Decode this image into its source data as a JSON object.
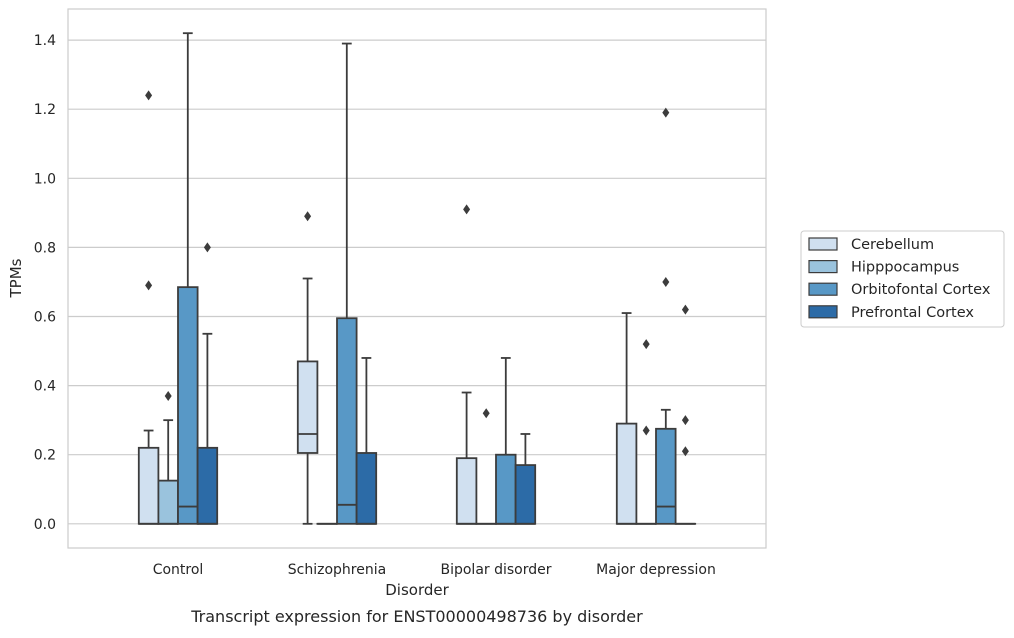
{
  "chart_data": {
    "type": "box",
    "title": "",
    "caption": "Transcript expression for ENST00000498736 by disorder",
    "xlabel": "Disorder",
    "ylabel": "TPMs",
    "ylim": [
      -0.07,
      1.49
    ],
    "yticks": [
      "0.0",
      "0.2",
      "0.4",
      "0.6",
      "0.8",
      "1.0",
      "1.2",
      "1.4"
    ],
    "categories": [
      "Control",
      "Schizophrenia",
      "Bipolar disorder",
      "Major depression"
    ],
    "grid": "horizontal",
    "legend_position": "right",
    "series": [
      {
        "name": "Cerebellum",
        "color": "#d0e0f0",
        "boxes": [
          {
            "q1": 0.0,
            "median": 0.0,
            "q3": 0.22,
            "whisker_low": 0.0,
            "whisker_high": 0.27,
            "outliers": [
              0.69,
              1.24
            ]
          },
          {
            "q1": 0.205,
            "median": 0.26,
            "q3": 0.47,
            "whisker_low": 0.0,
            "whisker_high": 0.71,
            "outliers": [
              0.89
            ]
          },
          {
            "q1": 0.0,
            "median": 0.0,
            "q3": 0.19,
            "whisker_low": 0.0,
            "whisker_high": 0.38,
            "outliers": [
              0.91
            ]
          },
          {
            "q1": 0.0,
            "median": 0.0,
            "q3": 0.29,
            "whisker_low": 0.0,
            "whisker_high": 0.61,
            "outliers": []
          }
        ]
      },
      {
        "name": "Hipppocampus",
        "color": "#9ac3dd",
        "boxes": [
          {
            "q1": 0.0,
            "median": 0.0,
            "q3": 0.125,
            "whisker_low": 0.0,
            "whisker_high": 0.3,
            "outliers": [
              0.37
            ]
          },
          {
            "q1": 0.0,
            "median": 0.0,
            "q3": 0.0,
            "whisker_low": 0.0,
            "whisker_high": 0.0,
            "outliers": []
          },
          {
            "q1": 0.0,
            "median": 0.0,
            "q3": 0.0,
            "whisker_low": 0.0,
            "whisker_high": 0.0,
            "outliers": [
              0.32
            ]
          },
          {
            "q1": 0.0,
            "median": 0.0,
            "q3": 0.0,
            "whisker_low": 0.0,
            "whisker_high": 0.0,
            "outliers": [
              0.27,
              0.52
            ]
          }
        ]
      },
      {
        "name": "Orbitofontal Cortex",
        "color": "#5898c6",
        "boxes": [
          {
            "q1": 0.0,
            "median": 0.05,
            "q3": 0.685,
            "whisker_low": 0.0,
            "whisker_high": 1.42,
            "outliers": []
          },
          {
            "q1": 0.0,
            "median": 0.055,
            "q3": 0.595,
            "whisker_low": 0.0,
            "whisker_high": 1.39,
            "outliers": []
          },
          {
            "q1": 0.0,
            "median": 0.0,
            "q3": 0.2,
            "whisker_low": 0.0,
            "whisker_high": 0.48,
            "outliers": []
          },
          {
            "q1": 0.0,
            "median": 0.05,
            "q3": 0.275,
            "whisker_low": 0.0,
            "whisker_high": 0.33,
            "outliers": [
              0.7,
              1.19
            ]
          }
        ]
      },
      {
        "name": "Prefrontal Cortex",
        "color": "#2c6ba7",
        "boxes": [
          {
            "q1": 0.0,
            "median": 0.0,
            "q3": 0.22,
            "whisker_low": 0.0,
            "whisker_high": 0.55,
            "outliers": [
              0.8
            ]
          },
          {
            "q1": 0.0,
            "median": 0.0,
            "q3": 0.205,
            "whisker_low": 0.0,
            "whisker_high": 0.48,
            "outliers": []
          },
          {
            "q1": 0.0,
            "median": 0.0,
            "q3": 0.17,
            "whisker_low": 0.0,
            "whisker_high": 0.26,
            "outliers": []
          },
          {
            "q1": 0.0,
            "median": 0.0,
            "q3": 0.0,
            "whisker_low": 0.0,
            "whisker_high": 0.0,
            "outliers": [
              0.21,
              0.3,
              0.62
            ]
          }
        ]
      }
    ]
  }
}
